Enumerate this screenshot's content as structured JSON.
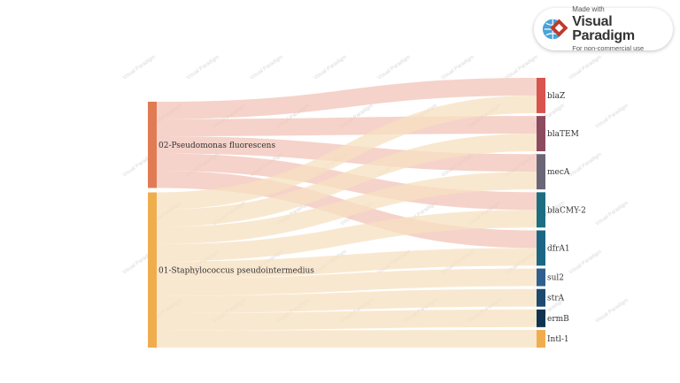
{
  "watermark": {
    "made_with": "Made with",
    "brand": "Visual Paradigm",
    "use": "For non-commercial use",
    "tile_text": "Visual Paradigm"
  },
  "sources": [
    {
      "id": "pf",
      "label": "02-Pseudomonas fluorescens",
      "color": "#e07b54",
      "link_color": "#f2c4b8"
    },
    {
      "id": "sp",
      "label": "01-Staphylococcus pseudointermedius",
      "color": "#f0ad4e",
      "link_color": "#f7e0c0"
    }
  ],
  "targets": [
    {
      "id": "blaZ",
      "label": "blaZ",
      "color": "#d9534f"
    },
    {
      "id": "blaTEM",
      "label": "blaTEM",
      "color": "#8c4b5e"
    },
    {
      "id": "mecA",
      "label": "mecA",
      "color": "#6b6578"
    },
    {
      "id": "blaCMY2",
      "label": "blaCMY-2",
      "color": "#1b6f80"
    },
    {
      "id": "dfrA1",
      "label": "dfrA1",
      "color": "#1b6685"
    },
    {
      "id": "sul2",
      "label": "sul2",
      "color": "#2f5f8e"
    },
    {
      "id": "strA",
      "label": "strA",
      "color": "#1d4a6e"
    },
    {
      "id": "ermB",
      "label": "ermB",
      "color": "#0f3350"
    },
    {
      "id": "Intl1",
      "label": "Intl-1",
      "color": "#f0ad4e"
    }
  ],
  "flows": [
    {
      "source": "pf",
      "target": "blaZ",
      "value": 1
    },
    {
      "source": "pf",
      "target": "blaTEM",
      "value": 1
    },
    {
      "source": "pf",
      "target": "mecA",
      "value": 1
    },
    {
      "source": "pf",
      "target": "blaCMY2",
      "value": 1
    },
    {
      "source": "pf",
      "target": "dfrA1",
      "value": 1
    },
    {
      "source": "sp",
      "target": "blaZ",
      "value": 1
    },
    {
      "source": "sp",
      "target": "blaTEM",
      "value": 1
    },
    {
      "source": "sp",
      "target": "mecA",
      "value": 1
    },
    {
      "source": "sp",
      "target": "blaCMY2",
      "value": 1
    },
    {
      "source": "sp",
      "target": "dfrA1",
      "value": 1
    },
    {
      "source": "sp",
      "target": "sul2",
      "value": 1
    },
    {
      "source": "sp",
      "target": "strA",
      "value": 1
    },
    {
      "source": "sp",
      "target": "ermB",
      "value": 1
    },
    {
      "source": "sp",
      "target": "Intl1",
      "value": 1
    }
  ]
}
